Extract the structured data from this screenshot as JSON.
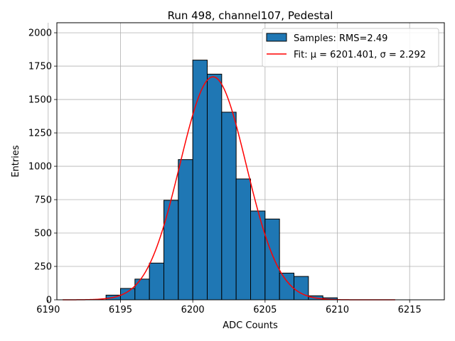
{
  "chart_data": {
    "type": "bar",
    "title": "Run 498, channel107, Pedestal",
    "xlabel": "ADC Counts",
    "ylabel": "Entries",
    "xlim": [
      6190.6,
      6217.4
    ],
    "ylim": [
      0,
      2075
    ],
    "xticks": [
      6190,
      6195,
      6200,
      6205,
      6210,
      6215
    ],
    "yticks": [
      0,
      250,
      500,
      750,
      1000,
      1250,
      1500,
      1750,
      2000
    ],
    "grid": true,
    "legend_position": "top-right",
    "bar_color": "#1f77b4",
    "fit_color": "#ff0000",
    "histogram": {
      "name": "Samples: RMS=2.49",
      "bin_edges": [
        6194,
        6195,
        6196,
        6197,
        6198,
        6199,
        6200,
        6201,
        6202,
        6203,
        6204,
        6205,
        6206,
        6207,
        6208,
        6209,
        6210
      ],
      "counts": [
        35,
        85,
        155,
        275,
        745,
        1050,
        1795,
        1690,
        1405,
        905,
        665,
        605,
        200,
        175,
        30,
        15
      ]
    },
    "fit": {
      "name": "Fit: μ = 6201.401, σ = 2.292",
      "mu": 6201.401,
      "sigma": 2.292,
      "amplitude": 1670,
      "x_range": [
        6191,
        6214
      ]
    }
  }
}
